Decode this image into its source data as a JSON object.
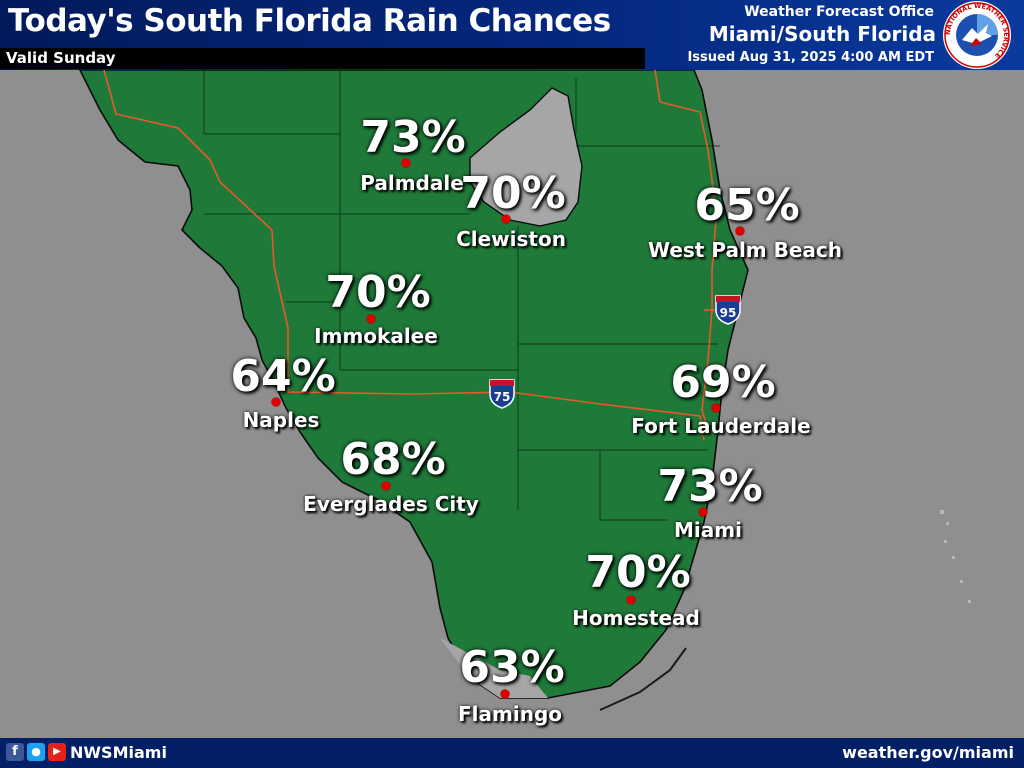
{
  "header": {
    "title": "Today's South Florida Rain Chances",
    "valid": "Valid Sunday",
    "office_line": "Weather Forecast Office",
    "office_name": "Miami/South Florida",
    "issued": "Issued Aug 31, 2025 4:00 AM EDT",
    "logo_icon": "nws-logo-icon",
    "logo_text": "NATIONAL WEATHER SERVICE"
  },
  "map": {
    "land_color": "#1f7a3a",
    "water_color": "#8f8f8f",
    "lake_color": "#a6a6a6",
    "interstates": [
      {
        "name": "interstate-95-shield",
        "label": "95"
      },
      {
        "name": "interstate-75-shield",
        "label": "75"
      }
    ]
  },
  "locations": [
    {
      "name": "Palmdale",
      "chance": "73%"
    },
    {
      "name": "Clewiston",
      "chance": "70%"
    },
    {
      "name": "West Palm Beach",
      "chance": "65%"
    },
    {
      "name": "Immokalee",
      "chance": "70%"
    },
    {
      "name": "Naples",
      "chance": "64%"
    },
    {
      "name": "Fort Lauderdale",
      "chance": "69%"
    },
    {
      "name": "Everglades City",
      "chance": "68%"
    },
    {
      "name": "Miami",
      "chance": "73%"
    },
    {
      "name": "Homestead",
      "chance": "70%"
    },
    {
      "name": "Flamingo",
      "chance": "63%"
    }
  ],
  "footer": {
    "social_handle": "NWSMiami",
    "site_url": "weather.gov/miami",
    "social_icons": [
      "facebook-icon",
      "twitter-icon",
      "youtube-icon"
    ]
  }
}
